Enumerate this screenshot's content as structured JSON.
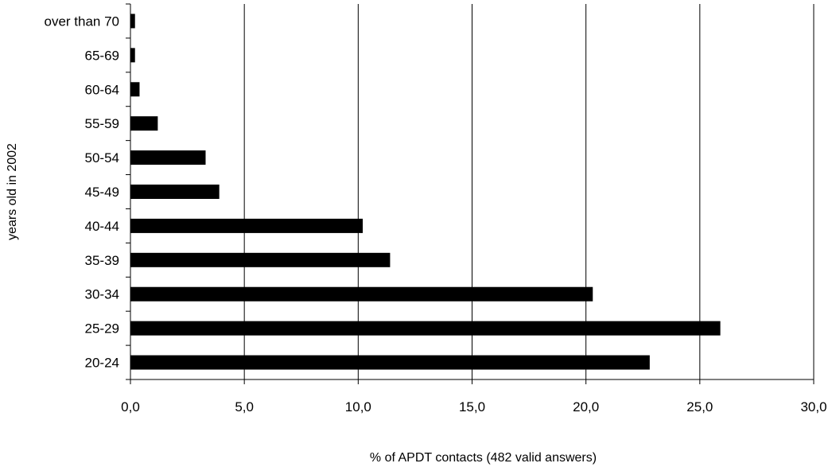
{
  "chart_data": {
    "type": "bar",
    "orientation": "horizontal",
    "categories": [
      "20-24",
      "25-29",
      "30-34",
      "35-39",
      "40-44",
      "45-49",
      "50-54",
      "55-59",
      "60-64",
      "65-69",
      "over than 70"
    ],
    "values": [
      22.8,
      25.9,
      20.3,
      11.4,
      10.2,
      3.9,
      3.3,
      1.2,
      0.4,
      0.2,
      0.2
    ],
    "title": "",
    "xlabel": "% of APDT contacts (482 valid answers)",
    "ylabel": "years old in 2002",
    "xlim": [
      0,
      30
    ],
    "xticks": [
      "0,0",
      "5,0",
      "10,0",
      "15,0",
      "20,0",
      "25,0",
      "30,0"
    ],
    "grid": "vertical",
    "legend": "none",
    "bar_color": "#000000",
    "grid_color": "#000000"
  }
}
